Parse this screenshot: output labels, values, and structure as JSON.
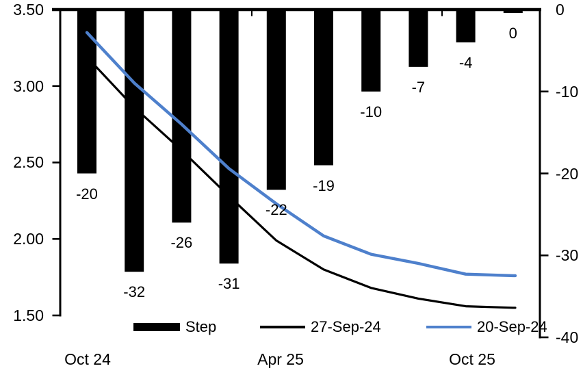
{
  "chart_data": {
    "type": "combo",
    "title": "",
    "background": "#ffffff",
    "bar_series": {
      "name": "Step",
      "axis": "right",
      "color": "#000000",
      "values": [
        -20,
        -32,
        -26,
        -31,
        -22,
        -19,
        -10,
        -7,
        -4,
        0
      ],
      "data_labels": [
        "-20",
        "-32",
        "-26",
        "-31",
        "-22",
        "-19",
        "-10",
        "-7",
        "-4",
        "0"
      ]
    },
    "line_series": [
      {
        "name": "27-Sep-24",
        "axis": "left",
        "color": "#000000",
        "values": [
          3.19,
          2.86,
          2.58,
          2.28,
          1.99,
          1.8,
          1.68,
          1.61,
          1.56,
          1.55
        ]
      },
      {
        "name": "20-Sep-24",
        "axis": "left",
        "color": "#4E80CC",
        "values": [
          3.35,
          3.02,
          2.75,
          2.46,
          2.23,
          2.02,
          1.9,
          1.84,
          1.77,
          1.76
        ]
      }
    ],
    "left_axis": {
      "ticks": [
        "3.50",
        "3.00",
        "2.50",
        "2.00",
        "1.50"
      ],
      "max": 3.5,
      "min": 1.5
    },
    "right_axis": {
      "ticks": [
        "0",
        "-10",
        "-20",
        "-30",
        "-40"
      ],
      "max": 0,
      "min": -40
    },
    "x_tick_labels": [
      {
        "label": "Oct 24",
        "index": 0
      },
      {
        "label": "Apr 25",
        "index": 4
      },
      {
        "label": "Oct 25",
        "index": 8
      }
    ],
    "legend": [
      {
        "label": "Step",
        "marker": "bar",
        "color": "#000000"
      },
      {
        "label": "27-Sep-24",
        "marker": "line",
        "color": "#000000"
      },
      {
        "label": "20-Sep-24",
        "marker": "line",
        "color": "#4E80CC"
      }
    ],
    "grid": false,
    "legend_position": "bottom-inside"
  }
}
